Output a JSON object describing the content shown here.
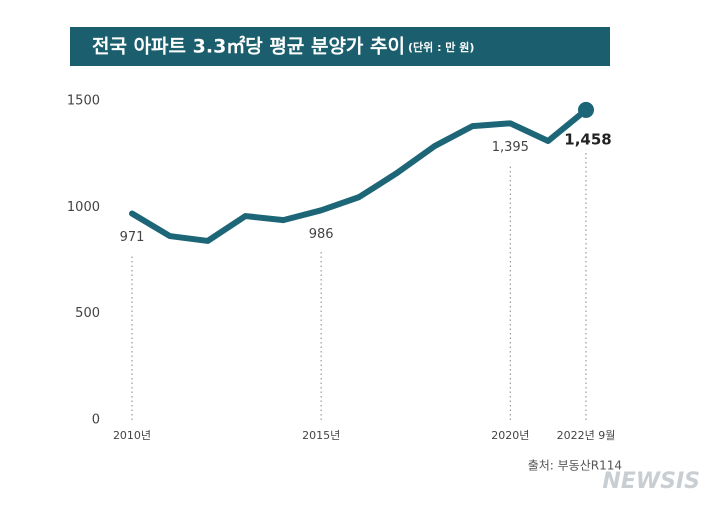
{
  "chart_data": {
    "type": "line",
    "title": "전국 아파트 3.3㎡당 평균 분양가 추이",
    "subtitle": "(단위 : 만 원)",
    "x": [
      2010,
      2011,
      2012,
      2013,
      2014,
      2015,
      2016,
      2017,
      2018,
      2019,
      2020,
      2021,
      2022
    ],
    "values": [
      971,
      865,
      842,
      959,
      940,
      986,
      1048,
      1161,
      1288,
      1382,
      1395,
      1312,
      1458
    ],
    "value_labels": [
      "971",
      null,
      null,
      null,
      null,
      "986",
      null,
      null,
      null,
      null,
      "1,395",
      null,
      "1,458"
    ],
    "color": "#1d6677",
    "xlim": [
      2010,
      2022
    ],
    "xticks": [
      {
        "value": 2010,
        "label": "2010년"
      },
      {
        "value": 2015,
        "label": "2015년"
      },
      {
        "value": 2020,
        "label": "2020년"
      },
      {
        "value": 2022,
        "label": "2022년 9월"
      }
    ],
    "ylim": [
      0,
      1500
    ],
    "yticks": [
      0,
      500,
      1000,
      1500
    ],
    "grid": false,
    "source": "출처: 부동산R114",
    "watermark": "NEWSIS"
  }
}
